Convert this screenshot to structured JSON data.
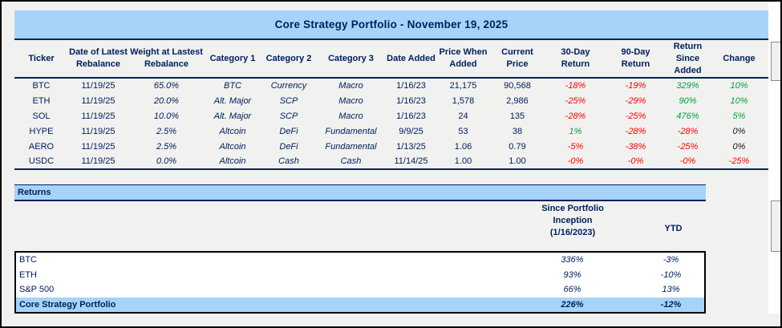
{
  "colors": {
    "background": "#f1f1ef",
    "band_blue": "#a6d4f8",
    "text_navy": "#002060",
    "negative_red": "#ff0000",
    "positive_green": "#00a33a",
    "zero_black": "#1a1a1a"
  },
  "portfolio": {
    "title": "Core Strategy Portfolio - November 19, 2025",
    "columns": [
      "Ticker",
      "Date of Latest Rebalance",
      "Weight at Lastest Rebalance",
      "Category 1",
      "Category 2",
      "Category 3",
      "Date Added",
      "Price When Added",
      "Current Price",
      "30-Day Return",
      "90-Day Return",
      "Return Since Added",
      "Change"
    ],
    "rows": [
      [
        "BTC",
        "11/19/25",
        "65.0%",
        "BTC",
        "Currency",
        "Macro",
        "1/16/23",
        "21,175",
        "90,568",
        "-18%",
        "-19%",
        "329%",
        "10%"
      ],
      [
        "ETH",
        "11/19/25",
        "20.0%",
        "Alt. Major",
        "SCP",
        "Macro",
        "1/16/23",
        "1,578",
        "2,986",
        "-25%",
        "-29%",
        "90%",
        "10%"
      ],
      [
        "SOL",
        "11/19/25",
        "10.0%",
        "Alt. Major",
        "SCP",
        "Macro",
        "1/16/23",
        "24",
        "135",
        "-28%",
        "-25%",
        "476%",
        "5%"
      ],
      [
        "HYPE",
        "11/19/25",
        "2.5%",
        "Altcoin",
        "DeFi",
        "Fundamental",
        "9/9/25",
        "53",
        "38",
        "1%",
        "-28%",
        "-28%",
        "0%"
      ],
      [
        "AERO",
        "11/19/25",
        "2.5%",
        "Altcoin",
        "DeFi",
        "Fundamental",
        "1/13/25",
        "1.06",
        "0.79",
        "-5%",
        "-38%",
        "-25%",
        "0%"
      ],
      [
        "USDC",
        "11/19/25",
        "0.0%",
        "Altcoin",
        "Cash",
        "Cash",
        "11/14/25",
        "1.00",
        "1.00",
        "-0%",
        "-0%",
        "-0%",
        "-25%"
      ]
    ]
  },
  "returns": {
    "header": "Returns",
    "col_inception": "Since Portfolio Inception (1/16/2023)",
    "col_ytd": "YTD",
    "rows": [
      {
        "label": "BTC",
        "inception": "336%",
        "ytd": "-3%",
        "highlight": false
      },
      {
        "label": "ETH",
        "inception": "93%",
        "ytd": "-10%",
        "highlight": false
      },
      {
        "label": "S&P 500",
        "inception": "66%",
        "ytd": "13%",
        "highlight": false
      },
      {
        "label": "Core Strategy Portfolio",
        "inception": "226%",
        "ytd": "-12%",
        "highlight": true
      }
    ]
  }
}
